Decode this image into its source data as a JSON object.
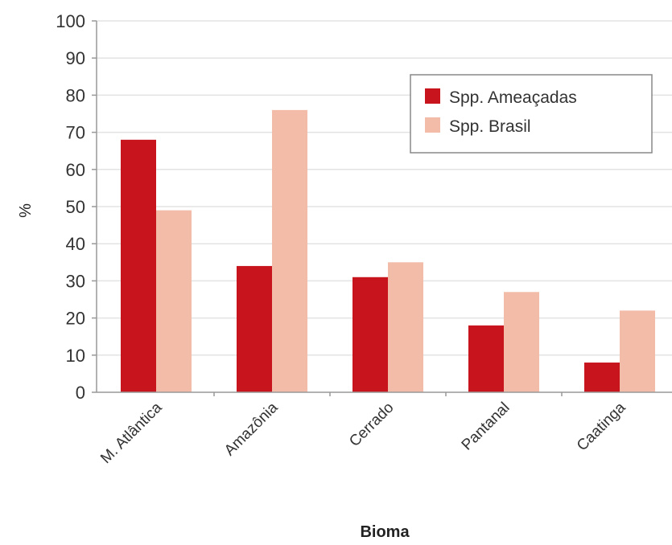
{
  "chart_data": {
    "type": "bar",
    "categories": [
      "M. Atlântica",
      "Amazônia",
      "Cerrado",
      "Pantanal",
      "Caatinga"
    ],
    "series": [
      {
        "name": "Spp. Ameaçadas",
        "values": [
          68,
          34,
          31,
          18,
          8
        ],
        "color": "#c8141c"
      },
      {
        "name": "Spp. Brasil",
        "values": [
          49,
          76,
          35,
          27,
          22
        ],
        "color": "#f2bca8"
      }
    ],
    "xlabel": "Bioma",
    "ylabel": "%",
    "ylim": [
      0,
      100
    ],
    "yticks": [
      0,
      10,
      20,
      30,
      40,
      50,
      60,
      70,
      80,
      90,
      100
    ],
    "grid": true,
    "legend": "top-right"
  }
}
